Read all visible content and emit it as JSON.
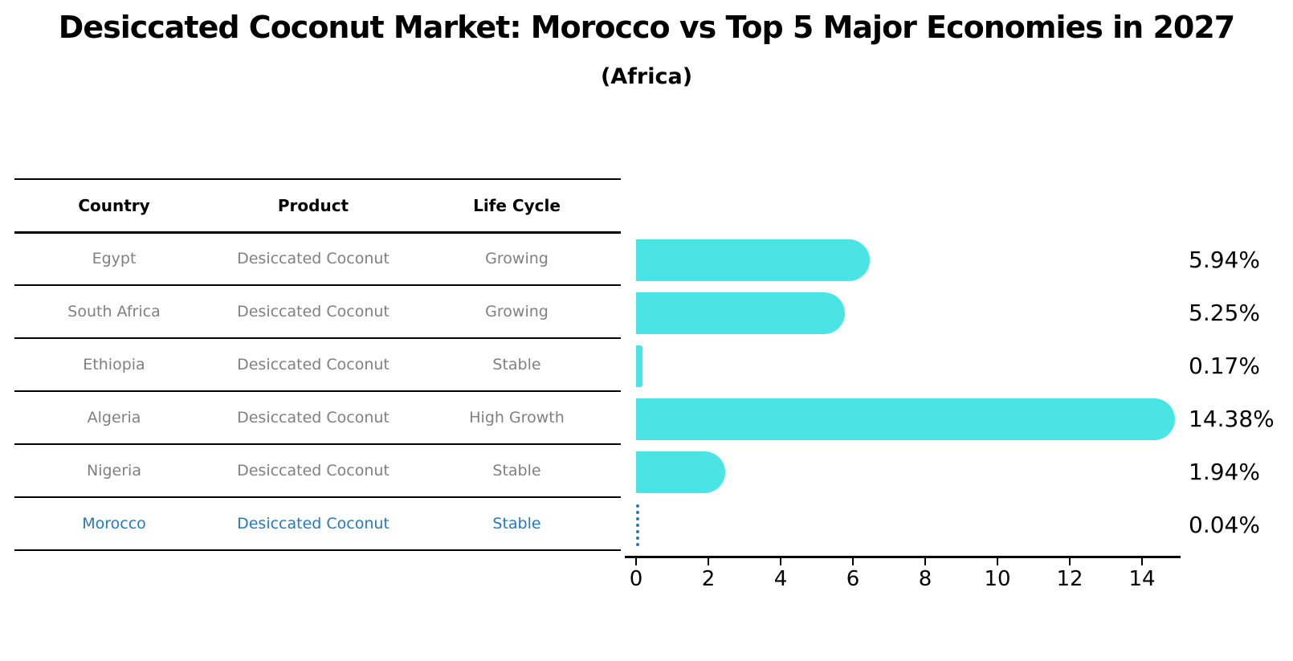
{
  "title": "Desiccated Coconut Market: Morocco vs Top 5 Major Economies in 2027",
  "subtitle": "(Africa)",
  "table": {
    "headers": [
      "Country",
      "Product",
      "Life Cycle"
    ],
    "rows": [
      {
        "country": "Egypt",
        "product": "Desiccated Coconut",
        "life_cycle": "Growing",
        "highlighted": false
      },
      {
        "country": "South Africa",
        "product": "Desiccated Coconut",
        "life_cycle": "Growing",
        "highlighted": false
      },
      {
        "country": "Ethiopia",
        "product": "Desiccated Coconut",
        "life_cycle": "Stable",
        "highlighted": false
      },
      {
        "country": "Algeria",
        "product": "Desiccated Coconut",
        "life_cycle": "High Growth",
        "highlighted": false
      },
      {
        "country": "Nigeria",
        "product": "Desiccated Coconut",
        "life_cycle": "Stable",
        "highlighted": false
      },
      {
        "country": "Morocco",
        "product": "Desiccated Coconut",
        "life_cycle": "Stable",
        "highlighted": true
      }
    ]
  },
  "chart_data": {
    "type": "bar",
    "orientation": "horizontal",
    "title": "Desiccated Coconut Market: Morocco vs Top 5 Major Economies in 2027 (Africa)",
    "categories": [
      "Egypt",
      "South Africa",
      "Ethiopia",
      "Algeria",
      "Nigeria",
      "Morocco"
    ],
    "values": [
      5.94,
      5.25,
      0.17,
      14.38,
      1.94,
      0.04
    ],
    "value_labels": [
      "5.94%",
      "5.25%",
      "0.17%",
      "14.38%",
      "1.94%",
      "0.04%"
    ],
    "x_ticks": [
      0,
      2,
      4,
      6,
      8,
      10,
      12,
      14
    ],
    "xlim": [
      0,
      15.1
    ],
    "xlabel": "",
    "ylabel": "",
    "grid": false,
    "legend": false,
    "highlight_index": 5
  },
  "colors": {
    "bar": "#4be4e4",
    "highlight": "#2878be",
    "muted_text": "#808080",
    "heading_text": "#000000",
    "axis": "#000000"
  }
}
